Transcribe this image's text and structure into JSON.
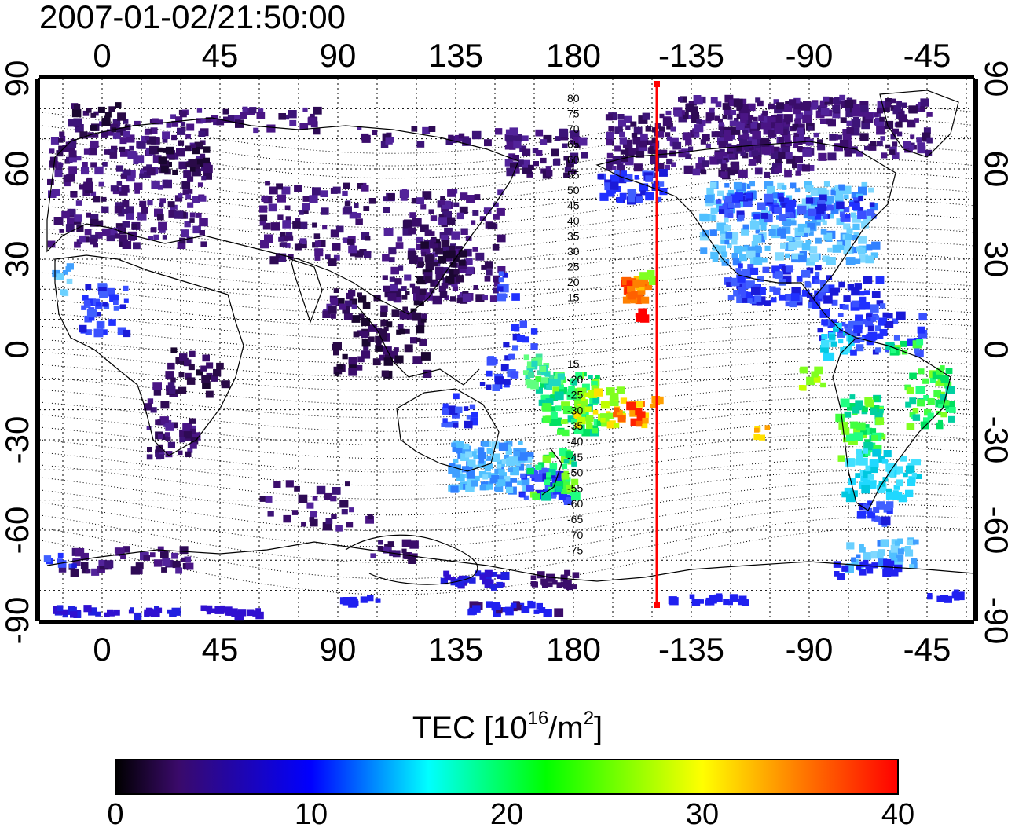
{
  "timestamp": "2007-01-02/21:50:00",
  "colorbar": {
    "title": "TEC  [10",
    "title_sup1": "16",
    "title_mid": "/m",
    "title_sup2": "2",
    "title_end": "]",
    "ticks": [
      "0",
      "10",
      "20",
      "30",
      "40"
    ],
    "range": [
      0,
      40
    ],
    "colors": [
      "#000000",
      "#3a0a6a",
      "#0000ff",
      "#00ffff",
      "#00ff00",
      "#ffff00",
      "#ff8000",
      "#ff0000"
    ]
  },
  "map": {
    "x_ticks": [
      "0",
      "45",
      "90",
      "135",
      "180",
      "-135",
      "-90",
      "-45"
    ],
    "y_ticks": [
      "90",
      "60",
      "30",
      "0",
      "-30",
      "-60",
      "-90"
    ],
    "meridian_marker_lon": -162,
    "marker_color": "#ff0000",
    "contour_labels_north": [
      "80",
      "75",
      "70",
      "65",
      "60",
      "55",
      "50",
      "45",
      "40",
      "35",
      "30",
      "25",
      "20",
      "15"
    ],
    "contour_labels_south": [
      "15",
      "-20",
      "-25",
      "-30",
      "-35",
      "-40",
      "-45",
      "-50",
      "-55",
      "-60",
      "-65",
      "-70",
      "-75"
    ]
  }
}
